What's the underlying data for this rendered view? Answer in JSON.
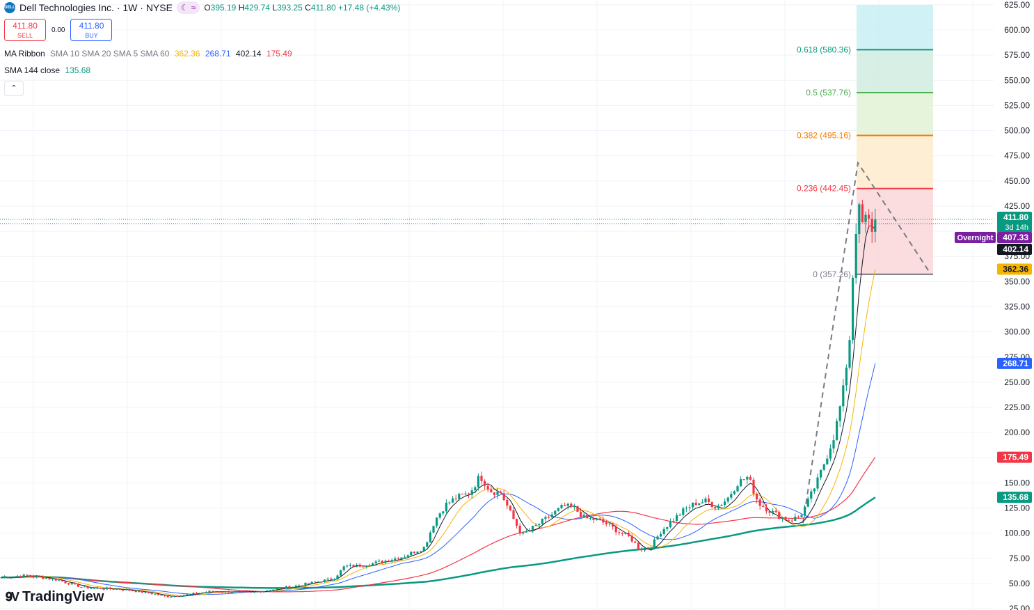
{
  "header": {
    "logo_text": "DELL",
    "title": "Dell Technologies Inc. · 1W · NYSE",
    "o_label": "O",
    "o_value": "395.19",
    "h_label": "H",
    "h_value": "429.74",
    "l_label": "L",
    "l_value": "393.25",
    "c_label": "C",
    "c_value": "411.80",
    "change": "+17.48 (+4.43%)",
    "moon_icon": "moon-icon",
    "wave_icon": "wave-icon"
  },
  "trade": {
    "sell_price": "411.80",
    "sell_label": "SELL",
    "spread": "0.00",
    "buy_price": "411.80",
    "buy_label": "BUY"
  },
  "indicators": {
    "ribbon_label": "MA Ribbon",
    "ribbon_params": "SMA 10 SMA 20 SMA 5 SMA 60",
    "ribbon_v1": "362.36",
    "ribbon_v2": "268.71",
    "ribbon_v3": "402.14",
    "ribbon_v4": "175.49",
    "sma_label": "SMA 144 close",
    "sma_value": "135.68",
    "collapse_icon": "chevron-up-icon"
  },
  "branding": {
    "name": "TradingView"
  },
  "colors": {
    "up": "#089981",
    "down": "#f23645",
    "sma10": "#f7b500",
    "sma20": "#2962ff",
    "sma5": "#131722",
    "sma60": "#f23645",
    "sma144": "#089981",
    "overnight": "#7b1fa2"
  },
  "chart_data": {
    "type": "candlestick",
    "interval": "1W",
    "ylim": [
      25,
      625
    ],
    "y_ticks": [
      "625.00",
      "600.00",
      "575.00",
      "550.00",
      "525.00",
      "500.00",
      "475.00",
      "450.00",
      "425.00",
      "400.00",
      "375.00",
      "350.00",
      "325.00",
      "300.00",
      "275.00",
      "250.00",
      "225.00",
      "200.00",
      "175.00",
      "150.00",
      "125.00",
      "100.00",
      "75.00",
      "50.00",
      "25.00"
    ],
    "grid": true,
    "fib_levels": [
      {
        "label": "0.618 (580.36)",
        "value": 580.36,
        "color": "#089981"
      },
      {
        "label": "0.5 (537.76)",
        "value": 537.76,
        "color": "#4caf50"
      },
      {
        "label": "0.382 (495.16)",
        "value": 495.16,
        "color": "#f57c00"
      },
      {
        "label": "0.236 (442.45)",
        "value": 442.45,
        "color": "#f23645"
      },
      {
        "label": "0 (357.26)",
        "value": 357.26,
        "color": "#787b86"
      }
    ],
    "price_labels": [
      {
        "text": "411.80",
        "sub": "3d 14h",
        "value": 411.8,
        "color": "#089981"
      },
      {
        "text": "407.33",
        "value": 407.33,
        "color": "#7b1fa2",
        "tag": "Overnight"
      },
      {
        "text": "402.14",
        "value": 402.14,
        "color": "#131722"
      },
      {
        "text": "362.36",
        "value": 362.36,
        "color": "#f7b500",
        "textColor": "#131722"
      },
      {
        "text": "268.71",
        "value": 268.71,
        "color": "#2962ff"
      },
      {
        "text": "175.49",
        "value": 175.49,
        "color": "#f23645"
      },
      {
        "text": "135.68",
        "value": 135.68,
        "color": "#089981"
      }
    ],
    "anchors": [
      [
        0,
        56
      ],
      [
        40,
        58
      ],
      [
        80,
        54
      ],
      [
        120,
        46
      ],
      [
        150,
        45
      ],
      [
        180,
        44
      ],
      [
        210,
        41
      ],
      [
        240,
        37
      ],
      [
        270,
        39
      ],
      [
        300,
        42
      ],
      [
        330,
        42
      ],
      [
        360,
        41
      ],
      [
        390,
        44
      ],
      [
        420,
        47
      ],
      [
        450,
        51
      ],
      [
        480,
        55
      ],
      [
        495,
        67
      ],
      [
        520,
        68
      ],
      [
        550,
        72
      ],
      [
        580,
        77
      ],
      [
        610,
        86
      ],
      [
        625,
        113
      ],
      [
        640,
        128
      ],
      [
        655,
        135
      ],
      [
        675,
        140
      ],
      [
        690,
        157
      ],
      [
        705,
        142
      ],
      [
        720,
        140
      ],
      [
        735,
        118
      ],
      [
        750,
        98
      ],
      [
        770,
        107
      ],
      [
        790,
        117
      ],
      [
        810,
        127
      ],
      [
        825,
        125
      ],
      [
        840,
        115
      ],
      [
        860,
        113
      ],
      [
        875,
        108
      ],
      [
        890,
        101
      ],
      [
        905,
        96
      ],
      [
        920,
        84
      ],
      [
        935,
        86
      ],
      [
        950,
        102
      ],
      [
        970,
        115
      ],
      [
        985,
        124
      ],
      [
        1000,
        130
      ],
      [
        1015,
        132
      ],
      [
        1030,
        126
      ],
      [
        1045,
        134
      ],
      [
        1060,
        150
      ],
      [
        1075,
        156
      ],
      [
        1090,
        130
      ],
      [
        1105,
        123
      ],
      [
        1120,
        117
      ],
      [
        1135,
        113
      ],
      [
        1150,
        117
      ],
      [
        1160,
        130
      ],
      [
        1175,
        152
      ],
      [
        1190,
        180
      ],
      [
        1200,
        200
      ],
      [
        1212,
        242
      ],
      [
        1222,
        300
      ],
      [
        1228,
        395
      ],
      [
        1234,
        420
      ],
      [
        1240,
        405
      ],
      [
        1246,
        413
      ],
      [
        1252,
        402
      ],
      [
        1258,
        411.8
      ]
    ],
    "ma_endpoints": {
      "sma10": 362.36,
      "sma20": 268.71,
      "sma5": 402.14,
      "sma60": 175.49,
      "sma144": 135.68
    }
  }
}
